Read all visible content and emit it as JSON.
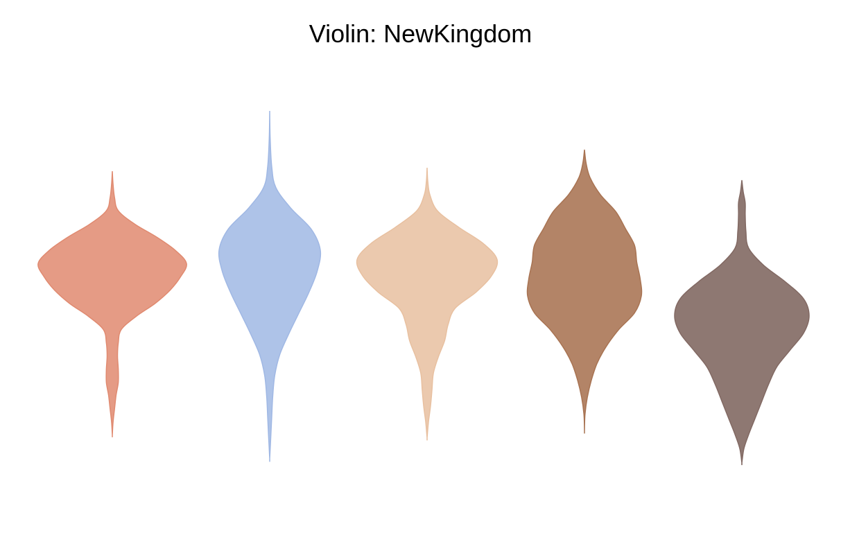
{
  "chart_data": {
    "type": "violin",
    "title": "Violin: NewKingdom",
    "xlabel": "",
    "ylabel": "",
    "grid": false,
    "axes_visible": false,
    "series": [
      {
        "color": "#e08a70",
        "opacity": 0.85,
        "profile": [
          [
            0.0,
            0.0
          ],
          [
            0.05,
            0.01
          ],
          [
            0.1,
            0.03
          ],
          [
            0.15,
            0.08
          ],
          [
            0.2,
            0.3
          ],
          [
            0.25,
            0.6
          ],
          [
            0.3,
            0.85
          ],
          [
            0.35,
            1.0
          ],
          [
            0.4,
            0.92
          ],
          [
            0.45,
            0.78
          ],
          [
            0.5,
            0.58
          ],
          [
            0.55,
            0.32
          ],
          [
            0.6,
            0.12
          ],
          [
            0.65,
            0.08
          ],
          [
            0.7,
            0.07
          ],
          [
            0.75,
            0.08
          ],
          [
            0.8,
            0.08
          ],
          [
            0.85,
            0.05
          ],
          [
            0.9,
            0.03
          ],
          [
            0.95,
            0.01
          ],
          [
            1.0,
            0.0
          ]
        ]
      },
      {
        "color": "#a0b8e4",
        "opacity": 0.85,
        "profile": [
          [
            0.0,
            0.0
          ],
          [
            0.08,
            0.01
          ],
          [
            0.16,
            0.04
          ],
          [
            0.22,
            0.12
          ],
          [
            0.28,
            0.42
          ],
          [
            0.34,
            0.82
          ],
          [
            0.4,
            1.0
          ],
          [
            0.46,
            0.94
          ],
          [
            0.52,
            0.78
          ],
          [
            0.58,
            0.58
          ],
          [
            0.64,
            0.38
          ],
          [
            0.7,
            0.2
          ],
          [
            0.76,
            0.1
          ],
          [
            0.82,
            0.06
          ],
          [
            0.88,
            0.04
          ],
          [
            0.94,
            0.02
          ],
          [
            1.0,
            0.0
          ]
        ]
      },
      {
        "color": "#e8c0a0",
        "opacity": 0.85,
        "profile": [
          [
            0.0,
            0.0
          ],
          [
            0.05,
            0.01
          ],
          [
            0.1,
            0.04
          ],
          [
            0.16,
            0.15
          ],
          [
            0.22,
            0.45
          ],
          [
            0.28,
            0.8
          ],
          [
            0.34,
            1.0
          ],
          [
            0.4,
            0.92
          ],
          [
            0.46,
            0.7
          ],
          [
            0.52,
            0.4
          ],
          [
            0.58,
            0.3
          ],
          [
            0.64,
            0.25
          ],
          [
            0.7,
            0.16
          ],
          [
            0.76,
            0.09
          ],
          [
            0.82,
            0.07
          ],
          [
            0.88,
            0.05
          ],
          [
            0.94,
            0.02
          ],
          [
            1.0,
            0.0
          ]
        ]
      },
      {
        "color": "#a87352",
        "opacity": 0.88,
        "profile": [
          [
            0.0,
            0.0
          ],
          [
            0.05,
            0.03
          ],
          [
            0.1,
            0.1
          ],
          [
            0.16,
            0.28
          ],
          [
            0.22,
            0.55
          ],
          [
            0.28,
            0.72
          ],
          [
            0.34,
            0.88
          ],
          [
            0.4,
            0.92
          ],
          [
            0.46,
            0.98
          ],
          [
            0.52,
            1.0
          ],
          [
            0.58,
            0.88
          ],
          [
            0.64,
            0.6
          ],
          [
            0.7,
            0.38
          ],
          [
            0.76,
            0.22
          ],
          [
            0.82,
            0.12
          ],
          [
            0.88,
            0.05
          ],
          [
            0.94,
            0.01
          ],
          [
            1.0,
            0.0
          ]
        ]
      },
      {
        "color": "#826963",
        "opacity": 0.9,
        "profile": [
          [
            0.0,
            0.0
          ],
          [
            0.04,
            0.02
          ],
          [
            0.08,
            0.05
          ],
          [
            0.12,
            0.05
          ],
          [
            0.18,
            0.06
          ],
          [
            0.24,
            0.1
          ],
          [
            0.3,
            0.32
          ],
          [
            0.36,
            0.65
          ],
          [
            0.42,
            0.92
          ],
          [
            0.48,
            1.0
          ],
          [
            0.54,
            0.92
          ],
          [
            0.6,
            0.72
          ],
          [
            0.66,
            0.52
          ],
          [
            0.72,
            0.4
          ],
          [
            0.78,
            0.3
          ],
          [
            0.84,
            0.2
          ],
          [
            0.9,
            0.1
          ],
          [
            0.95,
            0.03
          ],
          [
            1.0,
            0.0
          ]
        ]
      }
    ]
  }
}
